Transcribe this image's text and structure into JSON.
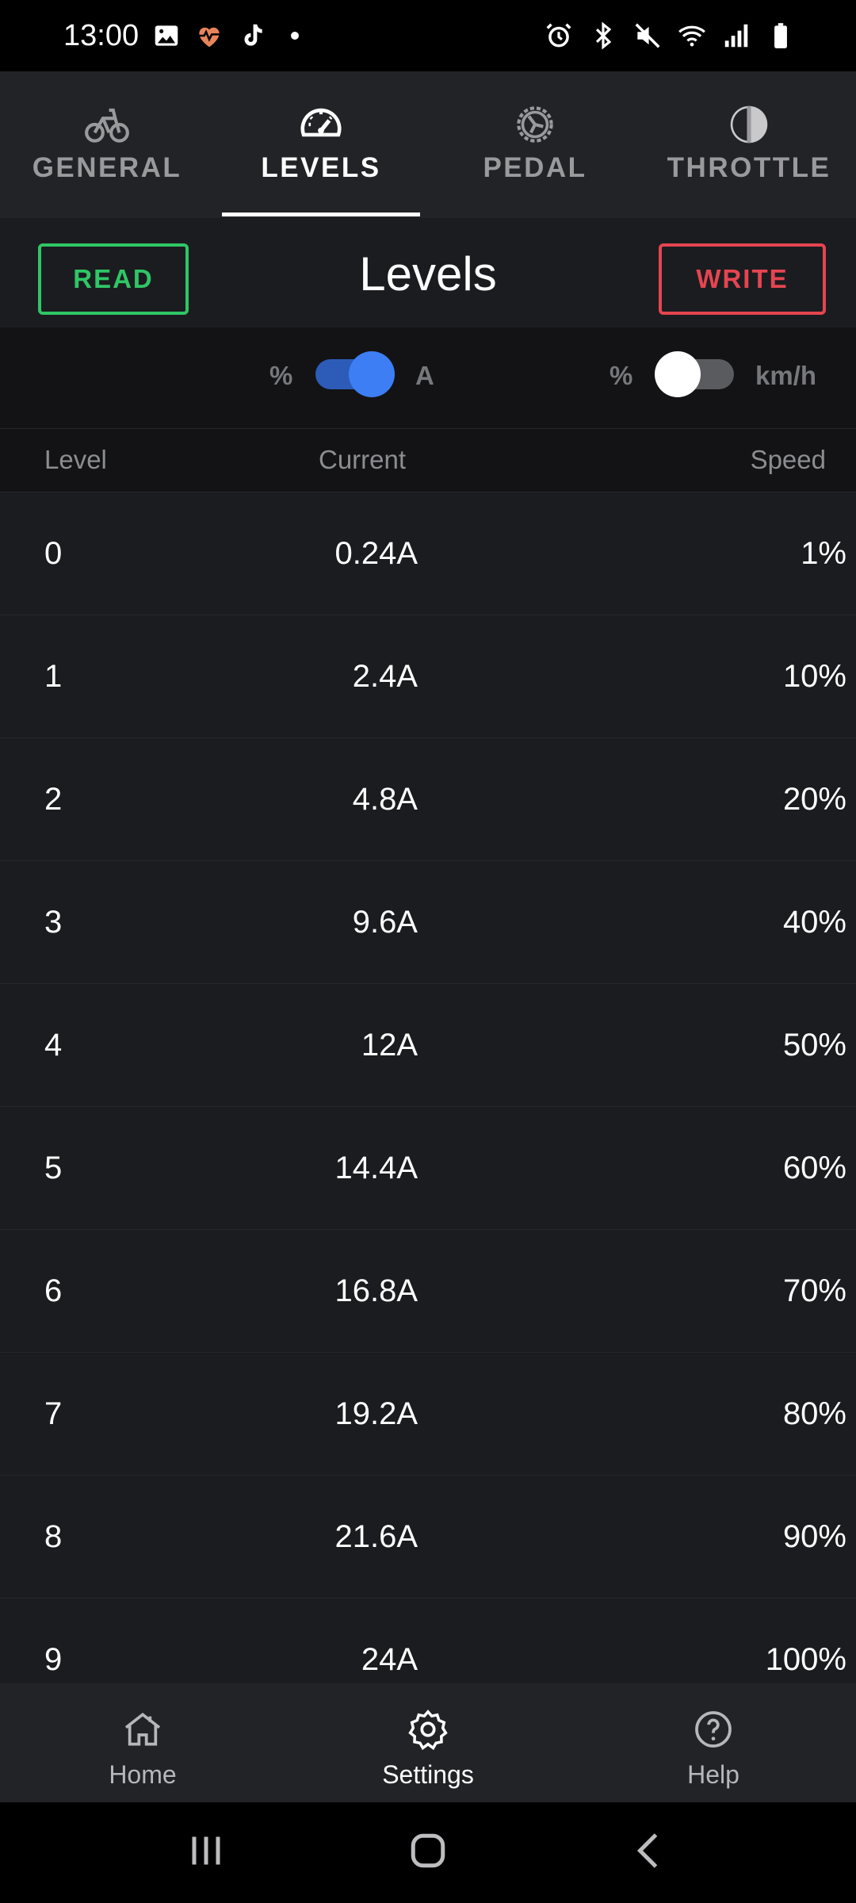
{
  "status_bar": {
    "time": "13:00",
    "left_icons": [
      "gallery-icon",
      "health-icon",
      "tiktok-icon"
    ],
    "right_icons": [
      "alarm-icon",
      "bluetooth-icon",
      "mute-icon",
      "wifi-icon",
      "signal-icon",
      "battery-icon"
    ]
  },
  "tabs": [
    {
      "label": "GENERAL",
      "icon": "bicycle-icon",
      "active": false
    },
    {
      "label": "LEVELS",
      "icon": "speedometer-icon",
      "active": true
    },
    {
      "label": "PEDAL",
      "icon": "pedal-gear-icon",
      "active": false
    },
    {
      "label": "THROTTLE",
      "icon": "throttle-icon",
      "active": false
    }
  ],
  "header": {
    "read_label": "READ",
    "title": "Levels",
    "write_label": "WRITE",
    "read_color": "#2fc665",
    "write_color": "#e54550"
  },
  "toggles": {
    "current": {
      "left_label": "%",
      "right_label": "A",
      "on": true
    },
    "speed": {
      "left_label": "%",
      "right_label": "km/h",
      "on": false
    },
    "accent": "#3d7ef4"
  },
  "table": {
    "headers": {
      "level": "Level",
      "current": "Current",
      "speed": "Speed"
    },
    "rows": [
      {
        "level": "0",
        "current": "0.24A",
        "speed": "1%"
      },
      {
        "level": "1",
        "current": "2.4A",
        "speed": "10%"
      },
      {
        "level": "2",
        "current": "4.8A",
        "speed": "20%"
      },
      {
        "level": "3",
        "current": "9.6A",
        "speed": "40%"
      },
      {
        "level": "4",
        "current": "12A",
        "speed": "50%"
      },
      {
        "level": "5",
        "current": "14.4A",
        "speed": "60%"
      },
      {
        "level": "6",
        "current": "16.8A",
        "speed": "70%"
      },
      {
        "level": "7",
        "current": "19.2A",
        "speed": "80%"
      },
      {
        "level": "8",
        "current": "21.6A",
        "speed": "90%"
      },
      {
        "level": "9",
        "current": "24A",
        "speed": "100%"
      }
    ]
  },
  "bottom_nav": [
    {
      "label": "Home",
      "icon": "home-icon",
      "active": false
    },
    {
      "label": "Settings",
      "icon": "settings-icon",
      "active": true
    },
    {
      "label": "Help",
      "icon": "help-icon",
      "active": false
    }
  ],
  "system_nav": [
    "recents-icon",
    "home-circle-icon",
    "back-icon"
  ]
}
